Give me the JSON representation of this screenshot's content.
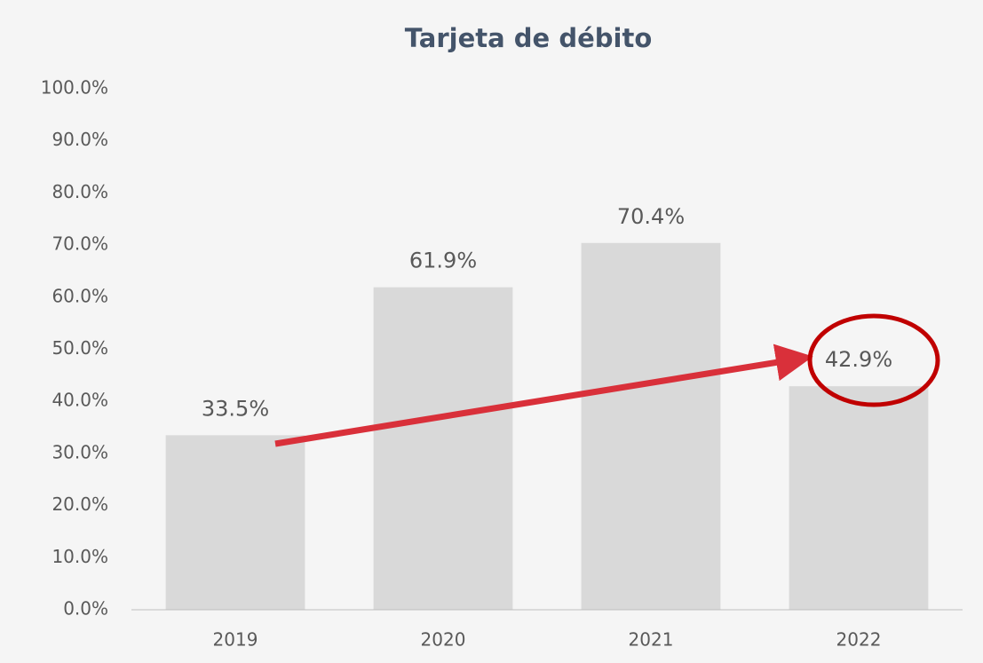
{
  "chart_data": {
    "type": "bar",
    "title": "Tarjeta de débito",
    "categories": [
      "2019",
      "2020",
      "2021",
      "2022"
    ],
    "values": [
      33.5,
      61.9,
      70.4,
      42.9
    ],
    "value_labels": [
      "33.5%",
      "61.9%",
      "70.4%",
      "42.9%"
    ],
    "color": "#d9d9d9",
    "ylim": [
      0,
      100
    ],
    "yticks": [
      {
        "value": 0,
        "label": "0.0%"
      },
      {
        "value": 10,
        "label": "10.0%"
      },
      {
        "value": 20,
        "label": "20.0%"
      },
      {
        "value": 30,
        "label": "30.0%"
      },
      {
        "value": 40,
        "label": "40.0%"
      },
      {
        "value": 50,
        "label": "50.0%"
      },
      {
        "value": 60,
        "label": "60.0%"
      },
      {
        "value": 70,
        "label": "70.0%"
      },
      {
        "value": 80,
        "label": "80.0%"
      },
      {
        "value": 90,
        "label": "90.0%"
      },
      {
        "value": 100,
        "label": "100.0%"
      }
    ],
    "grid": false
  }
}
